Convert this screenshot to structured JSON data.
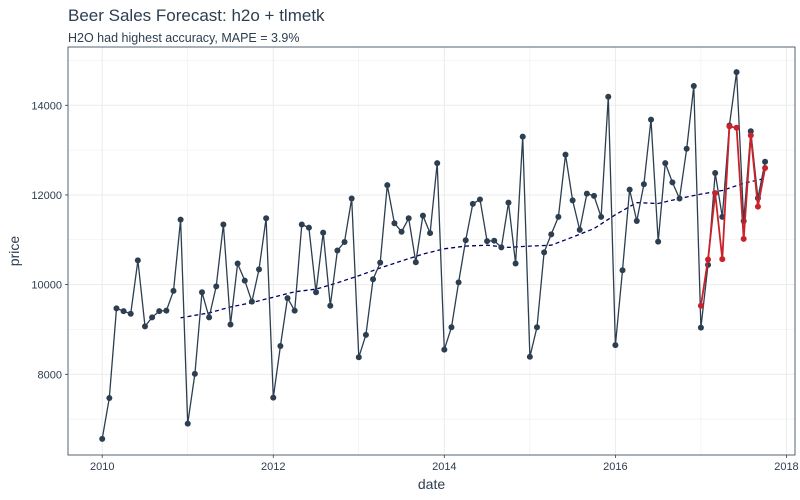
{
  "chart_data": {
    "type": "line",
    "title": "Beer Sales Forecast: h2o + tlmetk",
    "subtitle": "H2O had highest accuracy, MAPE = 3.9%",
    "xlabel": "date",
    "ylabel": "price",
    "xlim": [
      2009.6,
      2018.1
    ],
    "ylim": [
      6200,
      15300
    ],
    "x_ticks": [
      2010,
      2012,
      2014,
      2016,
      2018
    ],
    "x_tick_labels": [
      "2010",
      "2012",
      "2014",
      "2016",
      "2018"
    ],
    "y_ticks": [
      8000,
      10000,
      12000,
      14000
    ],
    "y_tick_labels": [
      "8000",
      "10000",
      "12000",
      "14000"
    ],
    "grid": true,
    "colors": {
      "actual": "#2c3e50",
      "prediction": "#c9222b",
      "trend": "#000066",
      "grid": "#ebebeb",
      "border": "#2c3e50"
    },
    "series": [
      {
        "name": "actual",
        "style": "line+points",
        "x": [
          2010.0,
          2010.0833,
          2010.1667,
          2010.25,
          2010.3333,
          2010.4167,
          2010.5,
          2010.5833,
          2010.6667,
          2010.75,
          2010.8333,
          2010.9167,
          2011.0,
          2011.0833,
          2011.1667,
          2011.25,
          2011.3333,
          2011.4167,
          2011.5,
          2011.5833,
          2011.6667,
          2011.75,
          2011.8333,
          2011.9167,
          2012.0,
          2012.0833,
          2012.1667,
          2012.25,
          2012.3333,
          2012.4167,
          2012.5,
          2012.5833,
          2012.6667,
          2012.75,
          2012.8333,
          2012.9167,
          2013.0,
          2013.0833,
          2013.1667,
          2013.25,
          2013.3333,
          2013.4167,
          2013.5,
          2013.5833,
          2013.6667,
          2013.75,
          2013.8333,
          2013.9167,
          2014.0,
          2014.0833,
          2014.1667,
          2014.25,
          2014.3333,
          2014.4167,
          2014.5,
          2014.5833,
          2014.6667,
          2014.75,
          2014.8333,
          2014.9167,
          2015.0,
          2015.0833,
          2015.1667,
          2015.25,
          2015.3333,
          2015.4167,
          2015.5,
          2015.5833,
          2015.6667,
          2015.75,
          2015.8333,
          2015.9167,
          2016.0,
          2016.0833,
          2016.1667,
          2016.25,
          2016.3333,
          2016.4167,
          2016.5,
          2016.5833,
          2016.6667,
          2016.75,
          2016.8333,
          2016.9167,
          2017.0,
          2017.0833,
          2017.1667,
          2017.25,
          2017.3333,
          2017.4167,
          2017.5,
          2017.5833,
          2017.6667,
          2017.75
        ],
        "values": [
          6560,
          7470,
          9470,
          9410,
          9350,
          10540,
          9070,
          9270,
          9410,
          9420,
          9860,
          11450,
          6900,
          8010,
          9830,
          9270,
          9960,
          11340,
          9110,
          10470,
          10090,
          9620,
          10340,
          11480,
          7480,
          8630,
          9700,
          9420,
          11340,
          11270,
          9830,
          11160,
          9530,
          10760,
          10950,
          11920,
          8380,
          8880,
          10120,
          10490,
          12220,
          11370,
          11180,
          11480,
          10500,
          11540,
          11150,
          12710,
          8550,
          9050,
          10050,
          10990,
          11800,
          11900,
          10970,
          10980,
          10830,
          11830,
          10470,
          13300,
          8390,
          9050,
          10720,
          11120,
          11510,
          12900,
          11880,
          11220,
          12030,
          11980,
          11510,
          14190,
          8650,
          10320,
          12120,
          11420,
          12240,
          13680,
          10960,
          12710,
          12280,
          11920,
          13030,
          14430,
          9040,
          10440,
          12490,
          11510,
          13550,
          14740,
          11420,
          13420,
          11930,
          12740
        ]
      },
      {
        "name": "prediction",
        "style": "line+points",
        "x": [
          2017.0,
          2017.0833,
          2017.1667,
          2017.25,
          2017.3333,
          2017.4167,
          2017.5,
          2017.5833,
          2017.6667,
          2017.75
        ],
        "values": [
          9530,
          10560,
          12040,
          10570,
          13530,
          13500,
          11020,
          13330,
          11740,
          12600
        ]
      },
      {
        "name": "trend",
        "style": "dashed",
        "x": [
          2010.9167,
          2011.25,
          2011.5,
          2011.75,
          2012.0,
          2012.25,
          2012.5,
          2012.75,
          2013.0,
          2013.25,
          2013.5,
          2013.75,
          2014.0,
          2014.25,
          2014.5,
          2014.75,
          2015.0,
          2015.25,
          2015.5,
          2015.75,
          2016.0,
          2016.25,
          2016.5,
          2016.75,
          2017.0,
          2017.25,
          2017.5,
          2017.75
        ],
        "values": [
          9260,
          9370,
          9500,
          9600,
          9720,
          9840,
          9900,
          10040,
          10200,
          10370,
          10530,
          10680,
          10800,
          10860,
          10880,
          10830,
          10860,
          10880,
          11060,
          11250,
          11560,
          11830,
          11810,
          11920,
          12020,
          12100,
          12260,
          12370
        ]
      }
    ]
  }
}
